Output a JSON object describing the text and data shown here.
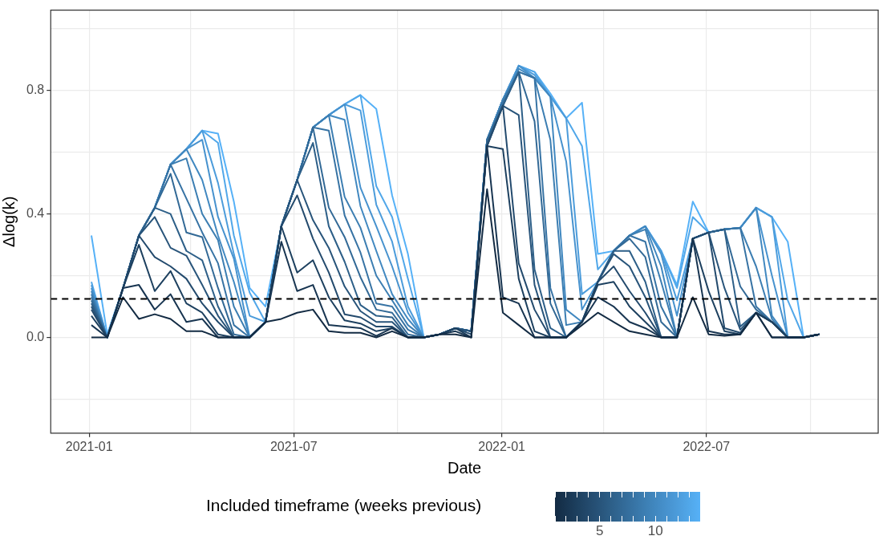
{
  "chart_data": {
    "type": "line",
    "xlabel": "Date",
    "ylabel": "Δlog(k)",
    "clabel": "Included timeframe (weeks previous)",
    "grid": true,
    "marker": "none",
    "line_style": "solid",
    "xlim": [
      "2020-11-28",
      "2022-11-30"
    ],
    "xticks": [
      "2021-01",
      {
        "value": "2021-04",
        "label": null
      },
      "2021-07",
      {
        "value": "2021-10",
        "label": null
      },
      "2022-01",
      {
        "value": "2022-04",
        "label": null
      },
      "2022-07",
      {
        "value": "2022-10",
        "label": null
      }
    ],
    "ylim": [
      -0.31,
      1.06
    ],
    "yticks": [
      {
        "value": -0.2,
        "label": null
      },
      {
        "value": 0,
        "label": "0.0"
      },
      {
        "value": 0.2,
        "label": null
      },
      0.4,
      {
        "value": 0.6,
        "label": null
      },
      0.8,
      {
        "value": 1,
        "label": null
      }
    ],
    "clim": [
      1,
      14
    ],
    "cticks": [
      {
        "value": 1,
        "label": null
      },
      {
        "value": 2,
        "label": null
      },
      {
        "value": 3,
        "label": null
      },
      {
        "value": 4,
        "label": null
      },
      5,
      {
        "value": 6,
        "label": null
      },
      {
        "value": 7,
        "label": null
      },
      {
        "value": 8,
        "label": null
      },
      {
        "value": 9,
        "label": null
      },
      10,
      {
        "value": 11,
        "label": null
      },
      {
        "value": 12,
        "label": null
      },
      {
        "value": 13,
        "label": null
      },
      {
        "value": 14,
        "label": null
      }
    ],
    "ref_lines": [
      {
        "axis": "y",
        "value": 0.125,
        "color": "#000000",
        "line_style": "dashed"
      }
    ],
    "x": [
      "2021-01-03",
      "2021-01-17",
      "2021-01-31",
      "2021-02-14",
      "2021-02-28",
      "2021-03-14",
      "2021-03-28",
      "2021-04-11",
      "2021-04-25",
      "2021-05-09",
      "2021-05-23",
      "2021-06-06",
      "2021-06-20",
      "2021-07-04",
      "2021-07-18",
      "2021-08-01",
      "2021-08-15",
      "2021-08-29",
      "2021-09-12",
      "2021-09-26",
      "2021-10-10",
      "2021-10-24",
      "2021-11-07",
      "2021-11-21",
      "2021-12-05",
      "2021-12-19",
      "2022-01-02",
      "2022-01-16",
      "2022-01-30",
      "2022-02-13",
      "2022-02-27",
      "2022-03-13",
      "2022-03-27",
      "2022-04-10",
      "2022-04-24",
      "2022-05-08",
      "2022-05-22",
      "2022-06-05",
      "2022-06-19",
      "2022-07-03",
      "2022-07-17",
      "2022-07-31",
      "2022-08-14",
      "2022-08-28",
      "2022-09-11",
      "2022-09-25",
      "2022-10-09"
    ],
    "series": [
      {
        "color": "#132b43",
        "values": [
          0,
          0,
          0.13,
          0.06,
          0.075,
          0.06,
          0.02,
          0.02,
          0,
          0,
          0,
          0.05,
          0.06,
          0.08,
          0.09,
          0.02,
          0.015,
          0.015,
          0,
          0.02,
          0,
          0,
          0.01,
          0.01,
          0,
          0.48,
          0.08,
          0.04,
          0,
          0,
          0,
          0.04,
          0.08,
          0.05,
          0.02,
          0.01,
          0,
          0,
          0.13,
          0.01,
          0.005,
          0.01,
          0.08,
          0,
          0,
          0,
          0.01
        ]
      },
      {
        "color": "#183551",
        "values": [
          0.04,
          0,
          0.16,
          0.17,
          0.09,
          0.14,
          0.05,
          0.06,
          0,
          0,
          0,
          0.05,
          0.31,
          0.15,
          0.17,
          0.04,
          0.035,
          0.03,
          0.005,
          0.03,
          0,
          0,
          0.01,
          0.02,
          0,
          0.62,
          0.13,
          0.11,
          0,
          0,
          0,
          0.05,
          0.13,
          0.1,
          0.05,
          0.03,
          0,
          0,
          0.32,
          0.02,
          0.01,
          0.01,
          0.08,
          0,
          0,
          0,
          0.01
        ]
      },
      {
        "color": "#1d405f",
        "values": [
          0.07,
          0,
          0.16,
          0.3,
          0.15,
          0.215,
          0.11,
          0.08,
          0.01,
          0,
          0,
          0.05,
          0.36,
          0.21,
          0.25,
          0.13,
          0.055,
          0.045,
          0.02,
          0.03,
          0,
          0,
          0.01,
          0.03,
          0,
          0.62,
          0.61,
          0.19,
          0.02,
          0,
          0,
          0.05,
          0.17,
          0.18,
          0.1,
          0.05,
          0,
          0,
          0.32,
          0.15,
          0.02,
          0.01,
          0.08,
          0.05,
          0,
          0,
          0.01
        ]
      },
      {
        "color": "#234a6d",
        "values": [
          0.09,
          0,
          0.16,
          0.33,
          0.26,
          0.23,
          0.19,
          0.11,
          0.05,
          0,
          0,
          0.05,
          0.36,
          0.46,
          0.32,
          0.21,
          0.075,
          0.065,
          0.035,
          0.035,
          0,
          0,
          0.01,
          0.03,
          0.01,
          0.62,
          0.75,
          0.24,
          0.09,
          0,
          0,
          0.05,
          0.18,
          0.23,
          0.15,
          0.08,
          0,
          0,
          0.32,
          0.34,
          0.03,
          0.015,
          0.08,
          0.05,
          0,
          0,
          0.01
        ]
      },
      {
        "color": "#28547a",
        "values": [
          0.1,
          0,
          0.16,
          0.33,
          0.39,
          0.29,
          0.265,
          0.17,
          0.07,
          0,
          0,
          0.05,
          0.36,
          0.51,
          0.38,
          0.29,
          0.165,
          0.085,
          0.05,
          0.05,
          0,
          0,
          0.01,
          0.03,
          0.02,
          0.62,
          0.75,
          0.72,
          0.17,
          0,
          0,
          0.05,
          0.18,
          0.27,
          0.23,
          0.13,
          0,
          0,
          0.32,
          0.34,
          0.16,
          0.025,
          0.08,
          0.05,
          0,
          0,
          0.01
        ]
      },
      {
        "color": "#2d5f88",
        "values": [
          0.11,
          0,
          0.16,
          0.33,
          0.42,
          0.4,
          0.28,
          0.25,
          0.1,
          0,
          0,
          0.05,
          0.36,
          0.51,
          0.63,
          0.36,
          0.245,
          0.105,
          0.07,
          0.065,
          0,
          0,
          0.01,
          0.03,
          0.02,
          0.63,
          0.75,
          0.86,
          0.22,
          0.03,
          0,
          0.05,
          0.18,
          0.28,
          0.28,
          0.18,
          0,
          0,
          0.32,
          0.34,
          0.35,
          0.035,
          0.08,
          0.05,
          0,
          0,
          0.01
        ]
      },
      {
        "color": "#326996",
        "values": [
          0.12,
          0,
          0.16,
          0.33,
          0.42,
          0.53,
          0.34,
          0.325,
          0.16,
          0.01,
          0,
          0.05,
          0.36,
          0.51,
          0.68,
          0.42,
          0.325,
          0.195,
          0.09,
          0.08,
          0.01,
          0,
          0.01,
          0.03,
          0.02,
          0.64,
          0.75,
          0.86,
          0.7,
          0.11,
          0,
          0.05,
          0.18,
          0.28,
          0.32,
          0.26,
          0.05,
          0,
          0.32,
          0.34,
          0.35,
          0.165,
          0.09,
          0.05,
          0,
          0,
          0.01
        ]
      },
      {
        "color": "#3773a4",
        "values": [
          0.13,
          0,
          0.16,
          0.33,
          0.42,
          0.56,
          0.45,
          0.34,
          0.24,
          0.04,
          0,
          0.05,
          0.36,
          0.51,
          0.68,
          0.67,
          0.395,
          0.275,
          0.11,
          0.1,
          0.025,
          0,
          0.01,
          0.03,
          0.02,
          0.64,
          0.76,
          0.86,
          0.84,
          0.16,
          0,
          0.05,
          0.18,
          0.28,
          0.33,
          0.31,
          0.1,
          0,
          0.32,
          0.34,
          0.35,
          0.355,
          0.1,
          0.05,
          0,
          0,
          0.01
        ]
      },
      {
        "color": "#3c7eb2",
        "values": [
          0.14,
          0,
          0.16,
          0.33,
          0.42,
          0.56,
          0.58,
          0.4,
          0.315,
          0.1,
          0,
          0.05,
          0.36,
          0.51,
          0.68,
          0.72,
          0.455,
          0.355,
          0.2,
          0.12,
          0.04,
          0,
          0.01,
          0.03,
          0.02,
          0.64,
          0.77,
          0.86,
          0.84,
          0.64,
          0.04,
          0.05,
          0.18,
          0.28,
          0.33,
          0.35,
          0.18,
          0,
          0.32,
          0.34,
          0.35,
          0.355,
          0.23,
          0.06,
          0,
          0,
          0.01
        ]
      },
      {
        "color": "#4188c0",
        "values": [
          0.15,
          0,
          0.16,
          0.33,
          0.42,
          0.56,
          0.61,
          0.51,
          0.33,
          0.18,
          0,
          0.05,
          0.36,
          0.51,
          0.68,
          0.72,
          0.705,
          0.425,
          0.28,
          0.14,
          0.06,
          0,
          0.01,
          0.03,
          0.02,
          0.64,
          0.77,
          0.87,
          0.84,
          0.78,
          0.09,
          0.05,
          0.18,
          0.28,
          0.33,
          0.36,
          0.23,
          0,
          0.32,
          0.34,
          0.35,
          0.355,
          0.42,
          0.07,
          0,
          0,
          0.01
        ]
      },
      {
        "color": "#4792ce",
        "values": [
          0.16,
          0,
          0.16,
          0.33,
          0.42,
          0.56,
          0.61,
          0.64,
          0.39,
          0.255,
          0,
          0.05,
          0.36,
          0.51,
          0.68,
          0.72,
          0.755,
          0.485,
          0.36,
          0.23,
          0.08,
          0,
          0.01,
          0.03,
          0.02,
          0.64,
          0.77,
          0.88,
          0.84,
          0.78,
          0.57,
          0.09,
          0.18,
          0.28,
          0.33,
          0.36,
          0.27,
          0.07,
          0.32,
          0.34,
          0.35,
          0.355,
          0.42,
          0.2,
          0,
          0,
          0.01
        ]
      },
      {
        "color": "#4c9cdb",
        "values": [
          0.17,
          0,
          0.16,
          0.33,
          0.42,
          0.56,
          0.61,
          0.67,
          0.5,
          0.27,
          0.07,
          0.05,
          0.36,
          0.51,
          0.68,
          0.72,
          0.755,
          0.735,
          0.43,
          0.31,
          0.1,
          0,
          0.01,
          0.03,
          0.02,
          0.64,
          0.77,
          0.88,
          0.85,
          0.78,
          0.71,
          0.14,
          0.18,
          0.28,
          0.33,
          0.36,
          0.28,
          0.12,
          0.32,
          0.34,
          0.35,
          0.355,
          0.42,
          0.39,
          0,
          0,
          0.01
        ]
      },
      {
        "color": "#51a7e9",
        "values": [
          0.18,
          0,
          0.16,
          0.33,
          0.42,
          0.56,
          0.61,
          0.67,
          0.63,
          0.33,
          0.145,
          0.05,
          0.36,
          0.51,
          0.68,
          0.72,
          0.755,
          0.785,
          0.49,
          0.39,
          0.19,
          0,
          0.01,
          0.03,
          0.02,
          0.64,
          0.77,
          0.88,
          0.86,
          0.78,
          0.71,
          0.62,
          0.22,
          0.28,
          0.33,
          0.36,
          0.28,
          0.16,
          0.39,
          0.34,
          0.35,
          0.355,
          0.42,
          0.39,
          0.12,
          0,
          0.01
        ]
      },
      {
        "color": "#56b1f7",
        "values": [
          0.33,
          0.01,
          0.16,
          0.33,
          0.42,
          0.56,
          0.61,
          0.67,
          0.66,
          0.44,
          0.16,
          0.1,
          0.36,
          0.51,
          0.68,
          0.72,
          0.755,
          0.785,
          0.74,
          0.46,
          0.27,
          0,
          0.01,
          0.03,
          0.02,
          0.64,
          0.77,
          0.88,
          0.86,
          0.79,
          0.71,
          0.76,
          0.27,
          0.28,
          0.33,
          0.36,
          0.28,
          0.17,
          0.44,
          0.34,
          0.35,
          0.355,
          0.42,
          0.39,
          0.31,
          0,
          0.01
        ]
      }
    ]
  }
}
